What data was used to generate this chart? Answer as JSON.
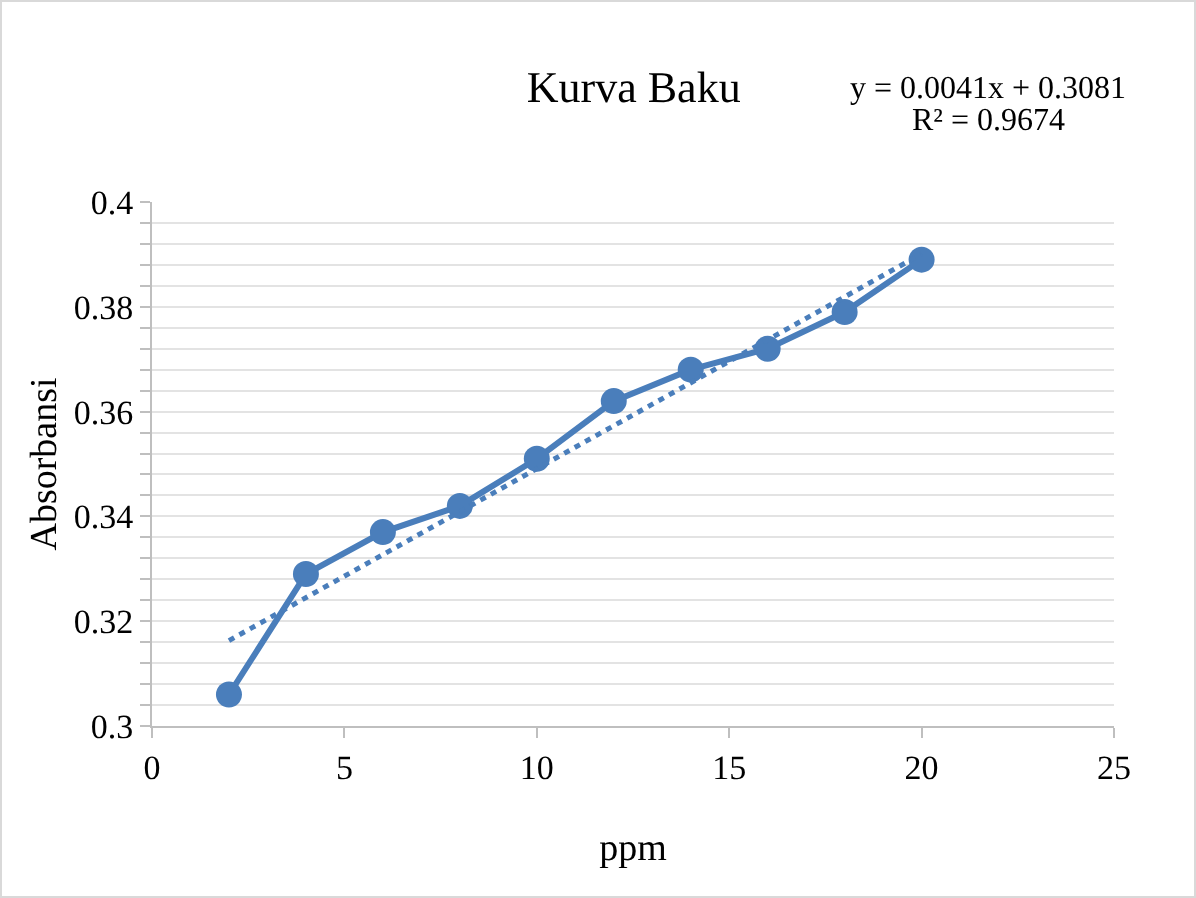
{
  "chart_data": {
    "type": "line",
    "title": "Kurva Baku",
    "xlabel": "ppm",
    "ylabel": "Absorbansi",
    "x": [
      2,
      4,
      6,
      8,
      10,
      12,
      14,
      16,
      18,
      20
    ],
    "series": [
      {
        "color": "#4a7ebb",
        "marker": "circle",
        "line_style": "solid",
        "values": [
          0.306,
          0.329,
          0.337,
          0.342,
          0.351,
          0.362,
          0.368,
          0.372,
          0.379,
          0.389
        ]
      },
      {
        "type": "line",
        "color": "#4a7ebb",
        "marker": "none",
        "line_style": "dotted",
        "x": [
          2,
          20
        ],
        "values": [
          0.3163,
          0.3901
        ]
      }
    ],
    "annotations": [
      "y = 0.0041x + 0.3081",
      "R² = 0.9674"
    ],
    "xlim": [
      0,
      25
    ],
    "xticks": [
      0,
      5,
      10,
      15,
      20,
      25
    ],
    "ylim": [
      0.3,
      0.4
    ],
    "yticks": [
      0.3,
      {
        "value": 0.304,
        "label": null
      },
      {
        "value": 0.308,
        "label": null
      },
      {
        "value": 0.312,
        "label": null
      },
      {
        "value": 0.316,
        "label": null
      },
      0.32,
      {
        "value": 0.324,
        "label": null
      },
      {
        "value": 0.328,
        "label": null
      },
      {
        "value": 0.332,
        "label": null
      },
      {
        "value": 0.336,
        "label": null
      },
      0.34,
      {
        "value": 0.344,
        "label": null
      },
      {
        "value": 0.348,
        "label": null
      },
      {
        "value": 0.352,
        "label": null
      },
      {
        "value": 0.356,
        "label": null
      },
      0.36,
      {
        "value": 0.364,
        "label": null
      },
      {
        "value": 0.368,
        "label": null
      },
      {
        "value": 0.372,
        "label": null
      },
      {
        "value": 0.376,
        "label": null
      },
      0.38,
      {
        "value": 0.384,
        "label": null
      },
      {
        "value": 0.388,
        "label": null
      },
      {
        "value": 0.392,
        "label": null
      },
      {
        "value": 0.396,
        "label": null
      },
      0.4
    ],
    "grid": "y"
  }
}
